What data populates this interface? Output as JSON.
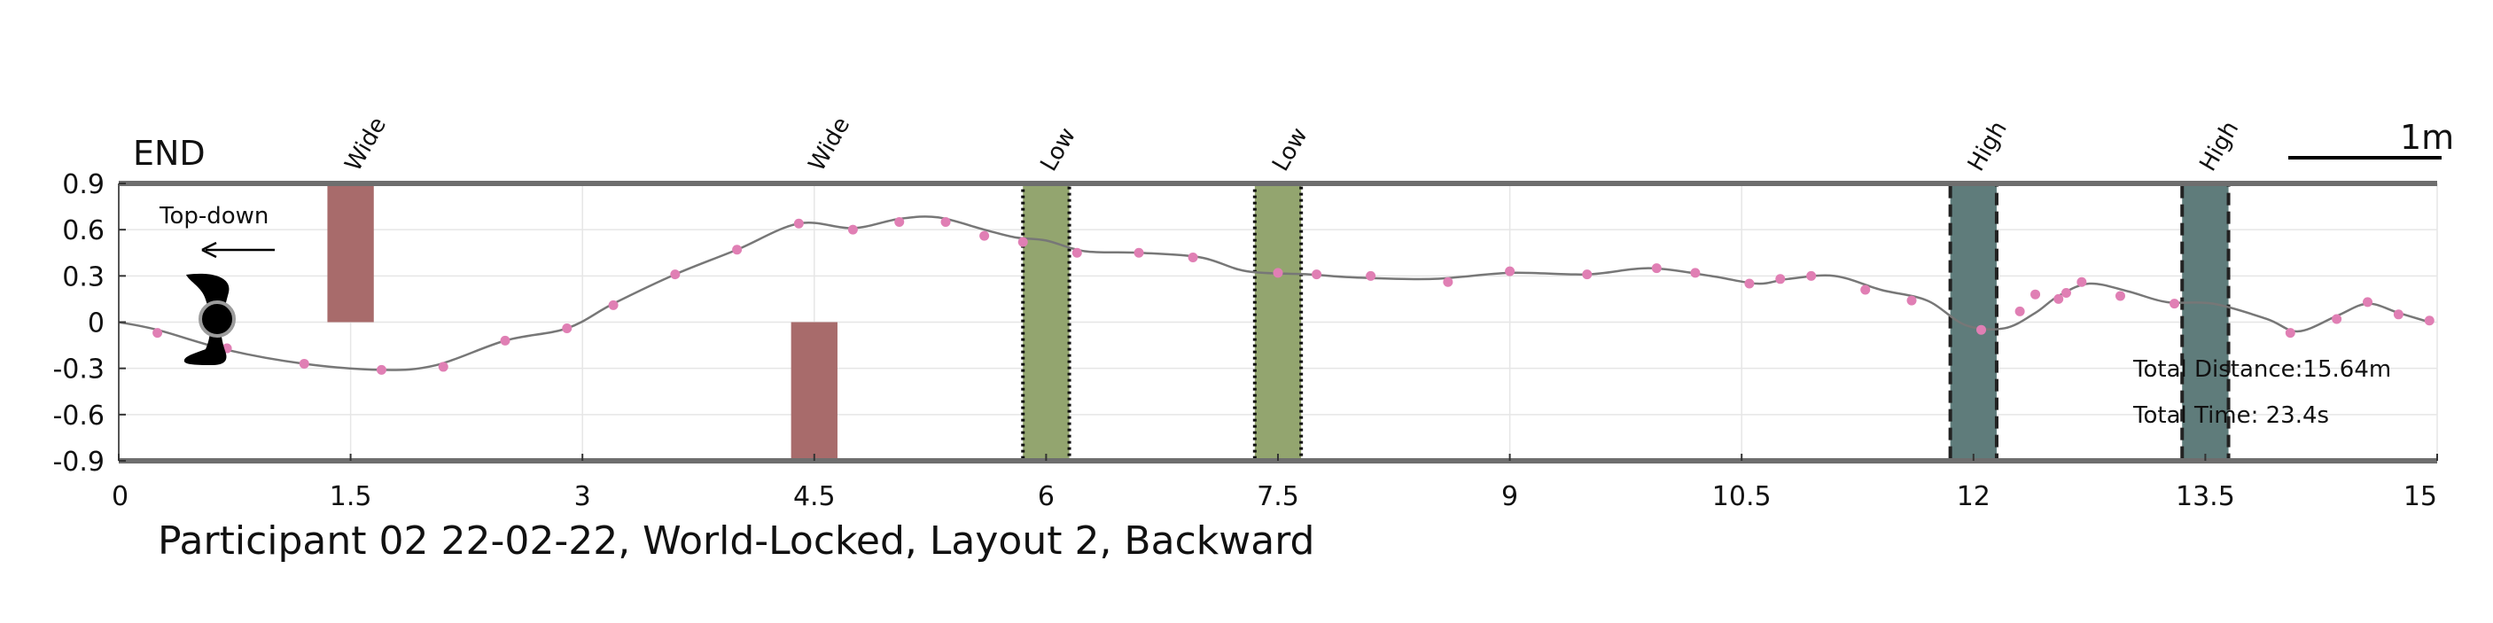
{
  "chart_data": {
    "type": "line",
    "title": "Participant 02 22-02-22, World-Locked, Layout 2, Backward",
    "xlim": [
      0,
      15
    ],
    "ylim": [
      -0.9,
      0.9
    ],
    "x_ticks": [
      "0",
      "1.5",
      "3",
      "4.5",
      "6",
      "7.5",
      "9",
      "10.5",
      "12",
      "13.5",
      "15"
    ],
    "y_ticks": [
      "0.9",
      "0.6",
      "0.3",
      "0",
      "-0.3",
      "-0.6",
      "-0.9"
    ],
    "grid": true,
    "path": {
      "x": [
        0,
        0.25,
        0.7,
        1.2,
        1.7,
        2.05,
        2.5,
        2.9,
        3.2,
        3.6,
        4.0,
        4.4,
        4.75,
        5.05,
        5.3,
        5.6,
        5.8,
        6.0,
        6.25,
        6.6,
        7.0,
        7.3,
        7.7,
        8.0,
        8.5,
        9.0,
        9.5,
        9.9,
        10.3,
        10.6,
        10.8,
        11.1,
        11.4,
        11.7,
        11.95,
        12.2,
        12.4,
        12.55,
        12.75,
        13.0,
        13.25,
        13.55,
        13.9,
        14.1,
        14.35,
        14.55,
        14.75,
        14.95
      ],
      "y": [
        0.0,
        -0.05,
        -0.18,
        -0.27,
        -0.31,
        -0.28,
        -0.12,
        -0.04,
        0.12,
        0.31,
        0.47,
        0.64,
        0.61,
        0.67,
        0.68,
        0.6,
        0.55,
        0.53,
        0.46,
        0.45,
        0.42,
        0.33,
        0.31,
        0.29,
        0.28,
        0.32,
        0.31,
        0.35,
        0.3,
        0.25,
        0.28,
        0.3,
        0.21,
        0.14,
        -0.02,
        -0.04,
        0.06,
        0.17,
        0.25,
        0.2,
        0.13,
        0.12,
        0.02,
        -0.06,
        0.04,
        0.12,
        0.06,
        0.0
      ],
      "marker_x": [
        0.25,
        0.7,
        1.2,
        1.7,
        2.1,
        2.5,
        2.9,
        3.2,
        3.6,
        4.0,
        4.4,
        4.75,
        5.05,
        5.35,
        5.6,
        5.85,
        6.2,
        6.6,
        6.95,
        7.5,
        7.75,
        8.1,
        8.6,
        9.0,
        9.5,
        9.95,
        10.2,
        10.55,
        10.75,
        10.95,
        11.3,
        11.6,
        12.05,
        12.3,
        12.4,
        12.55,
        12.6,
        12.7,
        12.95,
        13.3,
        14.05,
        14.35,
        14.55,
        14.75,
        14.95
      ],
      "marker_y": [
        -0.07,
        -0.17,
        -0.27,
        -0.31,
        -0.29,
        -0.12,
        -0.04,
        0.11,
        0.31,
        0.47,
        0.64,
        0.6,
        0.65,
        0.65,
        0.56,
        0.52,
        0.45,
        0.45,
        0.42,
        0.32,
        0.31,
        0.3,
        0.26,
        0.33,
        0.31,
        0.35,
        0.32,
        0.25,
        0.28,
        0.3,
        0.21,
        0.14,
        -0.05,
        0.07,
        0.18,
        0.15,
        0.19,
        0.26,
        0.17,
        0.12,
        -0.07,
        0.02,
        0.13,
        0.05,
        0.01
      ],
      "color": "#777777",
      "marker_color": "#e07fb4"
    },
    "obstacles": [
      {
        "label": "Wide",
        "kind": "wide",
        "x0": 1.35,
        "x1": 1.65,
        "y0": 0.0,
        "y1": 0.9,
        "fill": "#a86b6b",
        "border": "none"
      },
      {
        "label": "Wide",
        "kind": "wide",
        "x0": 4.35,
        "x1": 4.65,
        "y0": -0.9,
        "y1": 0.0,
        "fill": "#a86b6b",
        "border": "none"
      },
      {
        "label": "Low",
        "kind": "low",
        "x0": 5.85,
        "x1": 6.15,
        "y0": -0.9,
        "y1": 0.9,
        "fill": "#93a56f",
        "border": "dotted"
      },
      {
        "label": "Low",
        "kind": "low",
        "x0": 7.35,
        "x1": 7.65,
        "y0": -0.9,
        "y1": 0.9,
        "fill": "#93a56f",
        "border": "dotted"
      },
      {
        "label": "High",
        "kind": "high",
        "x0": 11.85,
        "x1": 12.15,
        "y0": -0.9,
        "y1": 0.9,
        "fill": "#5f7c7b",
        "border": "dashed"
      },
      {
        "label": "High",
        "kind": "high",
        "x0": 13.35,
        "x1": 13.65,
        "y0": -0.9,
        "y1": 0.9,
        "fill": "#5f7c7b",
        "border": "dashed"
      }
    ],
    "annotations": {
      "end_label": "END",
      "scale_label": "1m",
      "view_label": "Top-down",
      "total_distance": "Total Distance:15.64m",
      "total_time": "Total Time: 23.4s"
    }
  }
}
